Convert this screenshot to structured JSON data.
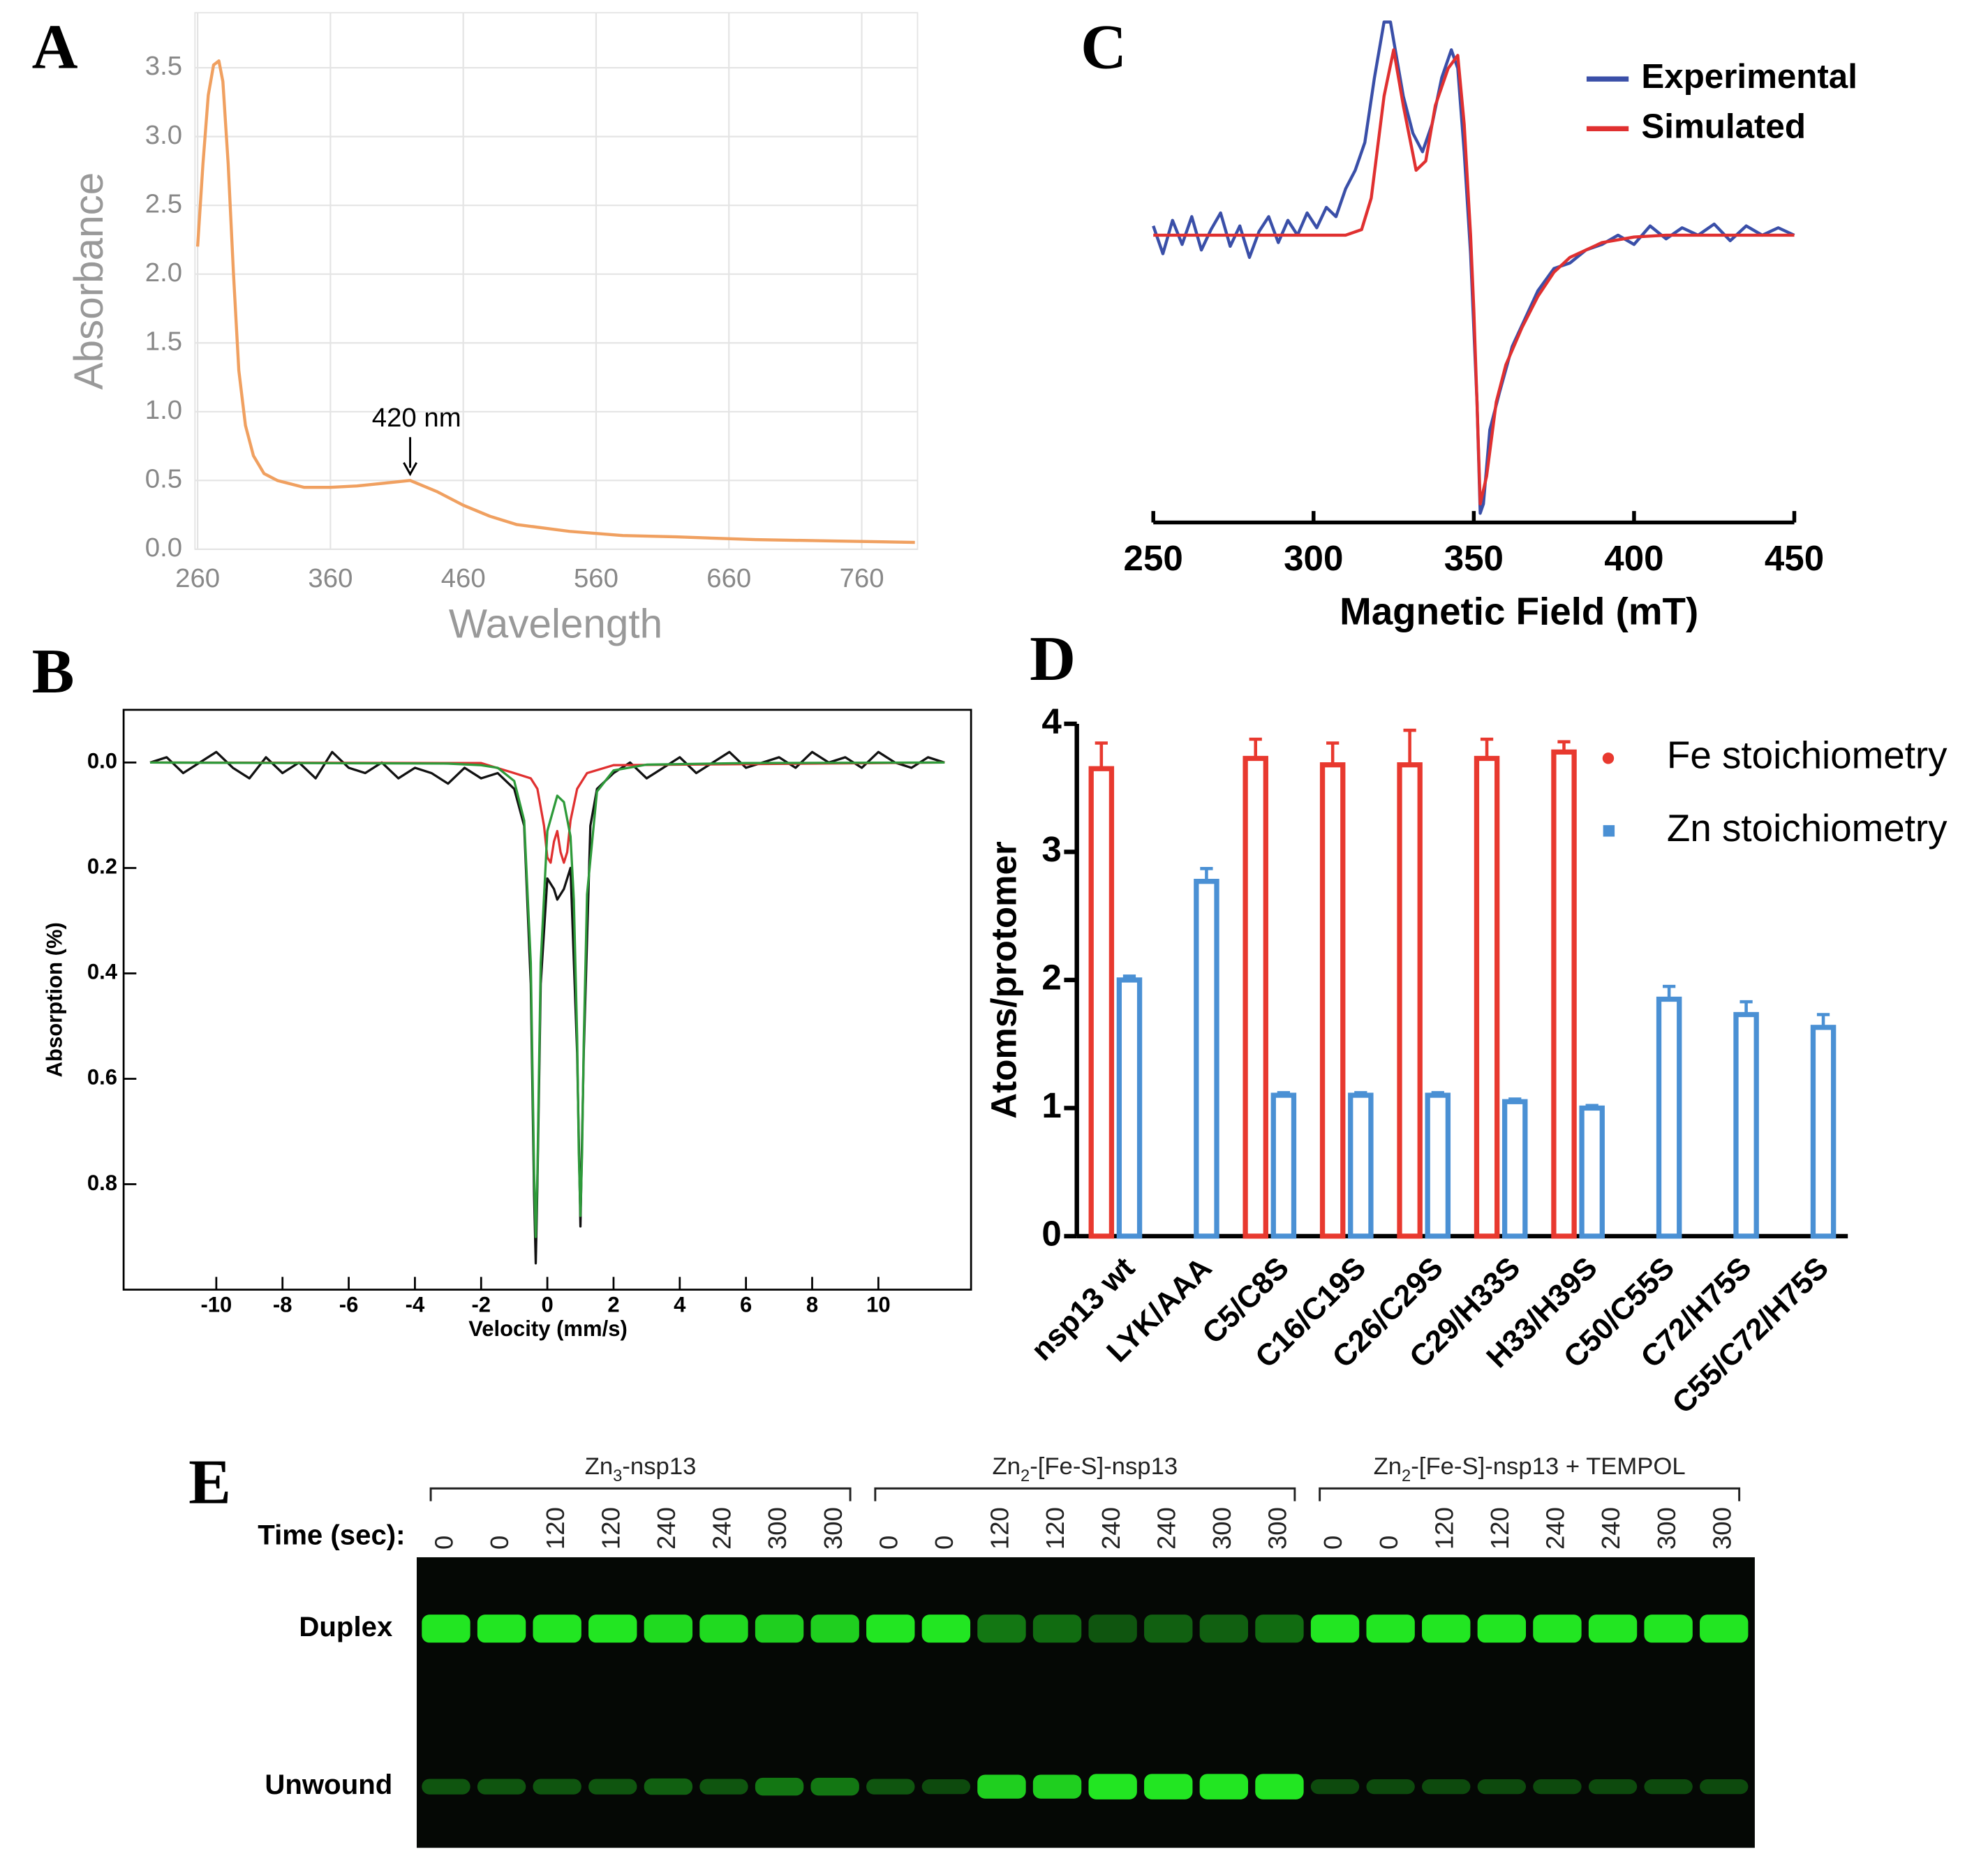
{
  "chart_data": [
    {
      "type": "line",
      "panel": "A",
      "x_label": "Wavelength",
      "y_label": "Absorbance",
      "annotation": {
        "text": "420 nm",
        "x": 420,
        "y": 0.5
      },
      "xlim": [
        258,
        802
      ],
      "ylim": [
        0,
        3.9
      ],
      "xticks": [
        260,
        360,
        460,
        560,
        660,
        760
      ],
      "yticks": [
        {
          "value": 0,
          "label": "0.0"
        },
        0.5,
        {
          "value": 1,
          "label": "1.0"
        },
        1.5,
        {
          "value": 2,
          "label": "2.0"
        },
        2.5,
        {
          "value": 3,
          "label": "3.0"
        },
        3.5
      ],
      "grid": true,
      "series": [
        {
          "color": "#f0a060",
          "x": [
            260,
            264,
            268,
            272,
            276,
            279,
            283,
            287,
            291,
            296,
            302,
            310,
            320,
            340,
            360,
            380,
            400,
            420,
            440,
            460,
            480,
            500,
            540,
            580,
            620,
            680,
            740,
            800
          ],
          "values": [
            2.2,
            2.8,
            3.3,
            3.52,
            3.55,
            3.4,
            2.8,
            2.0,
            1.3,
            0.9,
            0.68,
            0.55,
            0.5,
            0.45,
            0.45,
            0.46,
            0.48,
            0.5,
            0.42,
            0.32,
            0.24,
            0.18,
            0.13,
            0.1,
            0.09,
            0.07,
            0.06,
            0.05
          ]
        }
      ]
    },
    {
      "type": "line",
      "panel": "B",
      "x_label": "Velocity (mm/s)",
      "y_label": "Absorption (%)",
      "xlim": [
        -12.8,
        12.8
      ],
      "ylim": [
        -0.1,
        1.0
      ],
      "y_reversed": true,
      "xticks": [
        -10,
        -8,
        -6,
        -4,
        -2,
        0,
        2,
        4,
        6,
        8,
        10
      ],
      "yticks": [
        {
          "value": 0,
          "label": "0.0"
        },
        0.2,
        0.4,
        0.6,
        0.8
      ],
      "series": [
        {
          "color": "#111111",
          "x": [
            -12,
            -11.5,
            -11,
            -10.5,
            -10,
            -9.5,
            -9,
            -8.5,
            -8,
            -7.5,
            -7,
            -6.5,
            -6,
            -5.5,
            -5,
            -4.5,
            -4,
            -3.5,
            -3,
            -2.5,
            -2,
            -1.5,
            -1,
            -0.7,
            -0.5,
            -0.4,
            -0.35,
            -0.3,
            -0.2,
            0,
            0.2,
            0.3,
            0.5,
            0.7,
            0.9,
            1.0,
            1.1,
            1.3,
            1.5,
            2,
            2.5,
            3,
            3.5,
            4,
            4.5,
            5,
            5.5,
            6,
            6.5,
            7,
            7.5,
            8,
            8.5,
            9,
            9.5,
            10,
            10.5,
            11,
            11.5,
            12
          ],
          "values": [
            0.0,
            -0.01,
            0.02,
            0.0,
            -0.02,
            0.01,
            0.03,
            -0.01,
            0.02,
            0.0,
            0.03,
            -0.02,
            0.01,
            0.02,
            0.0,
            0.03,
            0.01,
            0.02,
            0.04,
            0.01,
            0.03,
            0.02,
            0.05,
            0.12,
            0.42,
            0.82,
            0.95,
            0.8,
            0.42,
            0.22,
            0.24,
            0.26,
            0.24,
            0.2,
            0.55,
            0.88,
            0.55,
            0.12,
            0.05,
            0.02,
            0.0,
            0.03,
            0.01,
            -0.01,
            0.02,
            0.0,
            -0.02,
            0.01,
            0.0,
            -0.01,
            0.01,
            -0.02,
            0.0,
            -0.01,
            0.01,
            -0.02,
            0.0,
            0.01,
            -0.01,
            0.0
          ]
        },
        {
          "color": "#e03030",
          "x": [
            -12,
            -2,
            -1,
            -0.5,
            -0.3,
            -0.1,
            0,
            0.1,
            0.2,
            0.3,
            0.4,
            0.5,
            0.6,
            0.7,
            0.9,
            1.2,
            2,
            12
          ],
          "values": [
            0,
            0.001,
            0.02,
            0.03,
            0.05,
            0.12,
            0.18,
            0.19,
            0.15,
            0.13,
            0.17,
            0.19,
            0.17,
            0.11,
            0.05,
            0.02,
            0.005,
            0
          ]
        },
        {
          "color": "#2e9a3a",
          "x": [
            -12,
            -3,
            -2,
            -1.5,
            -1,
            -0.7,
            -0.5,
            -0.4,
            -0.35,
            -0.3,
            -0.2,
            0,
            0.3,
            0.5,
            0.7,
            0.8,
            0.9,
            0.95,
            1.0,
            1.05,
            1.1,
            1.2,
            1.5,
            2,
            3,
            6,
            12
          ],
          "values": [
            0,
            0.002,
            0.005,
            0.01,
            0.035,
            0.11,
            0.38,
            0.78,
            0.9,
            0.78,
            0.38,
            0.13,
            0.063,
            0.075,
            0.14,
            0.26,
            0.52,
            0.74,
            0.86,
            0.74,
            0.53,
            0.25,
            0.055,
            0.015,
            0.004,
            0.001,
            0
          ]
        }
      ]
    },
    {
      "type": "line",
      "panel": "C",
      "x_label": "Magnetic Field (mT)",
      "xlim": [
        250,
        450
      ],
      "ylim": [
        -1.55,
        1.2
      ],
      "xticks": [
        250,
        300,
        350,
        400,
        450
      ],
      "series": [
        {
          "name": "Experimental",
          "color": "#3a4fa8",
          "x": [
            250,
            253,
            256,
            259,
            262,
            265,
            268,
            271,
            274,
            277,
            280,
            283,
            286,
            289,
            292,
            295,
            298,
            301,
            304,
            307,
            310,
            313,
            316,
            319,
            322,
            324,
            326,
            328,
            331,
            334,
            337,
            340,
            343,
            345,
            347,
            349,
            351,
            352,
            353,
            355,
            358,
            362,
            366,
            370,
            375,
            380,
            385,
            390,
            395,
            400,
            405,
            410,
            415,
            420,
            425,
            430,
            435,
            440,
            445,
            450
          ],
          "values": [
            0.05,
            -0.1,
            0.08,
            -0.05,
            0.1,
            -0.08,
            0.03,
            0.12,
            -0.06,
            0.05,
            -0.12,
            0.02,
            0.1,
            -0.04,
            0.08,
            0.0,
            0.12,
            0.04,
            0.15,
            0.1,
            0.25,
            0.35,
            0.5,
            0.85,
            1.15,
            1.15,
            0.95,
            0.75,
            0.55,
            0.45,
            0.6,
            0.85,
            1.0,
            0.9,
            0.45,
            -0.1,
            -0.9,
            -1.5,
            -1.45,
            -1.05,
            -0.85,
            -0.6,
            -0.45,
            -0.3,
            -0.18,
            -0.15,
            -0.08,
            -0.05,
            0.0,
            -0.05,
            0.05,
            -0.02,
            0.04,
            0.0,
            0.06,
            -0.03,
            0.05,
            0.0,
            0.04,
            0.0
          ]
        },
        {
          "name": "Simulated",
          "color": "#e03030",
          "x": [
            250,
            310,
            315,
            318,
            322,
            325,
            328,
            332,
            335,
            338,
            342,
            345,
            347,
            349,
            350,
            351,
            352,
            354,
            357,
            360,
            365,
            370,
            375,
            380,
            390,
            400,
            410,
            450
          ],
          "values": [
            0,
            0,
            0.03,
            0.2,
            0.75,
            1.0,
            0.7,
            0.35,
            0.4,
            0.7,
            0.9,
            0.97,
            0.6,
            0,
            -0.4,
            -0.9,
            -1.45,
            -1.3,
            -0.9,
            -0.7,
            -0.5,
            -0.33,
            -0.2,
            -0.12,
            -0.04,
            -0.01,
            0,
            0
          ]
        }
      ]
    },
    {
      "type": "bar",
      "panel": "D",
      "y_label": "Atoms/protomer",
      "categories": [
        "nsp13 wt",
        "LYK/AAA",
        "C5/C8S",
        "C16/C19S",
        "C26/C29S",
        "C29/H33S",
        "H33/H39S",
        "C50/C55S",
        "C72/H75S",
        "C55/C72/H75S"
      ],
      "ylim": [
        0,
        4
      ],
      "yticks": [
        0,
        1,
        2,
        3,
        4
      ],
      "series": [
        {
          "name": "Fe stoichiometry",
          "color": "#e8392f",
          "values": [
            3.65,
            null,
            3.73,
            3.68,
            3.68,
            3.73,
            3.78,
            null,
            null,
            null
          ],
          "errors": [
            0.2,
            null,
            0.15,
            0.17,
            0.27,
            0.15,
            0.08,
            null,
            null,
            null
          ]
        },
        {
          "name": "Zn stoichiometry",
          "color": "#4a90d4",
          "values": [
            2.0,
            2.77,
            1.1,
            1.1,
            1.1,
            1.05,
            1.0,
            1.85,
            1.73,
            1.63
          ],
          "errors": [
            0.03,
            0.1,
            0.02,
            0.02,
            0.02,
            0.02,
            0.02,
            0.1,
            0.1,
            0.1
          ]
        }
      ]
    }
  ],
  "gel": {
    "panel": "E",
    "groups": [
      {
        "text": [
          "Zn",
          "3",
          "-nsp13"
        ]
      },
      {
        "text": [
          "Zn",
          "2",
          "-[Fe-S]-nsp13"
        ]
      },
      {
        "text": [
          "Zn",
          "2",
          "-[Fe-S]-nsp13 + TEMPOL"
        ]
      }
    ],
    "time_label": "Time (sec):",
    "times": [
      0,
      0,
      120,
      120,
      240,
      240,
      300,
      300,
      0,
      0,
      120,
      120,
      240,
      240,
      300,
      300,
      0,
      0,
      120,
      120,
      240,
      240,
      300,
      300
    ],
    "rows": [
      "Duplex",
      "Unwound"
    ],
    "bands": [
      [
        1,
        1,
        1,
        1,
        0.95,
        0.95,
        0.9,
        0.9,
        1,
        1,
        0.5,
        0.45,
        0.35,
        0.4,
        0.4,
        0.45,
        1,
        1,
        1,
        1,
        1,
        1,
        1,
        1
      ],
      [
        0.35,
        0.35,
        0.35,
        0.35,
        0.4,
        0.35,
        0.5,
        0.5,
        0.35,
        0.3,
        0.9,
        0.9,
        1,
        1,
        1,
        1,
        0.3,
        0.3,
        0.3,
        0.3,
        0.3,
        0.3,
        0.3,
        0.3
      ]
    ]
  }
}
